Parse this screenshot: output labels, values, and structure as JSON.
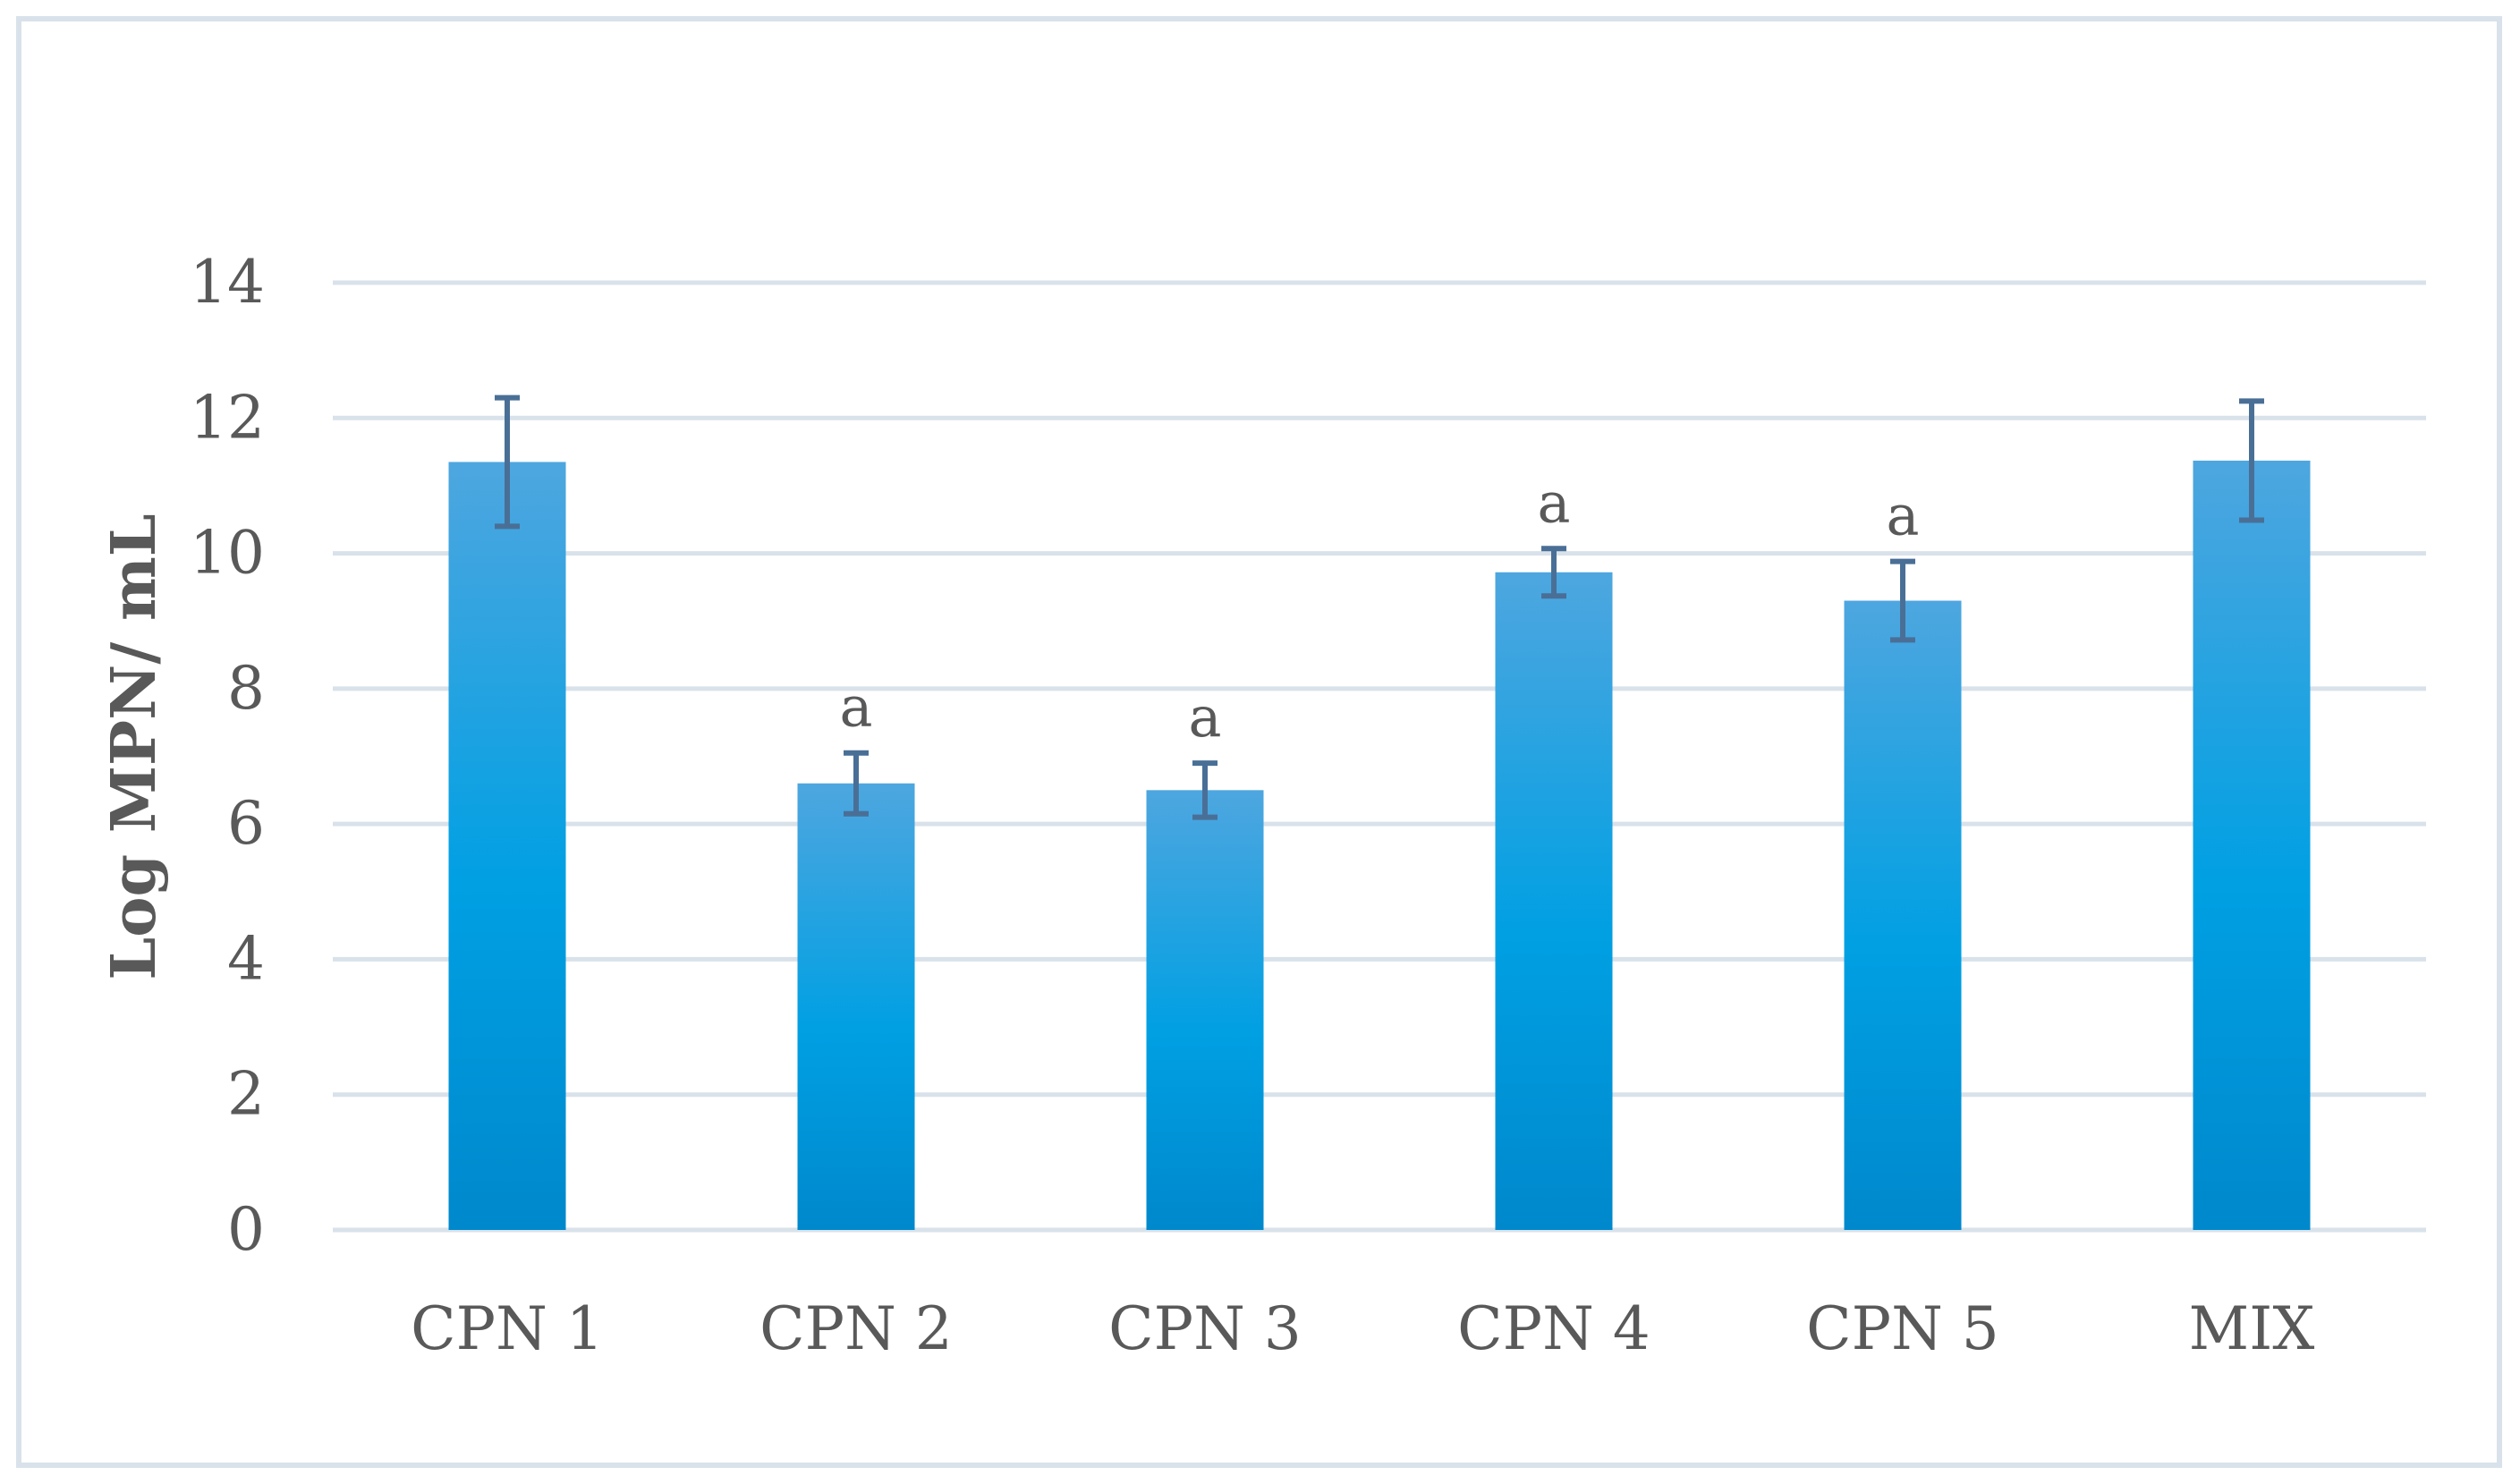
{
  "chart_data": {
    "type": "bar",
    "title": "",
    "xlabel": "",
    "ylabel": "Log MPN/ mL",
    "ylim": [
      0,
      14
    ],
    "yticks": [
      "0",
      "2",
      "4",
      "6",
      "8",
      "10",
      "12",
      "14"
    ],
    "grid": true,
    "legend": "none",
    "categories": [
      "CPN 1",
      "CPN 2",
      "CPN 3",
      "CPN 4",
      "CPN 5",
      "MIX"
    ],
    "values": [
      11.35,
      6.6,
      6.5,
      9.72,
      9.3,
      11.37
    ],
    "error": [
      0.95,
      0.45,
      0.4,
      0.35,
      0.58,
      0.88
    ],
    "annotations": [
      "",
      "a",
      "a",
      "a",
      "a",
      ""
    ],
    "colors": {
      "bar_top": "#4ea6df",
      "bar_mid": "#00a0e3",
      "bar_bottom": "#0088cc",
      "error_bar": "#4a6f96",
      "grid": "#d9e2ea",
      "text": "#595959"
    }
  }
}
